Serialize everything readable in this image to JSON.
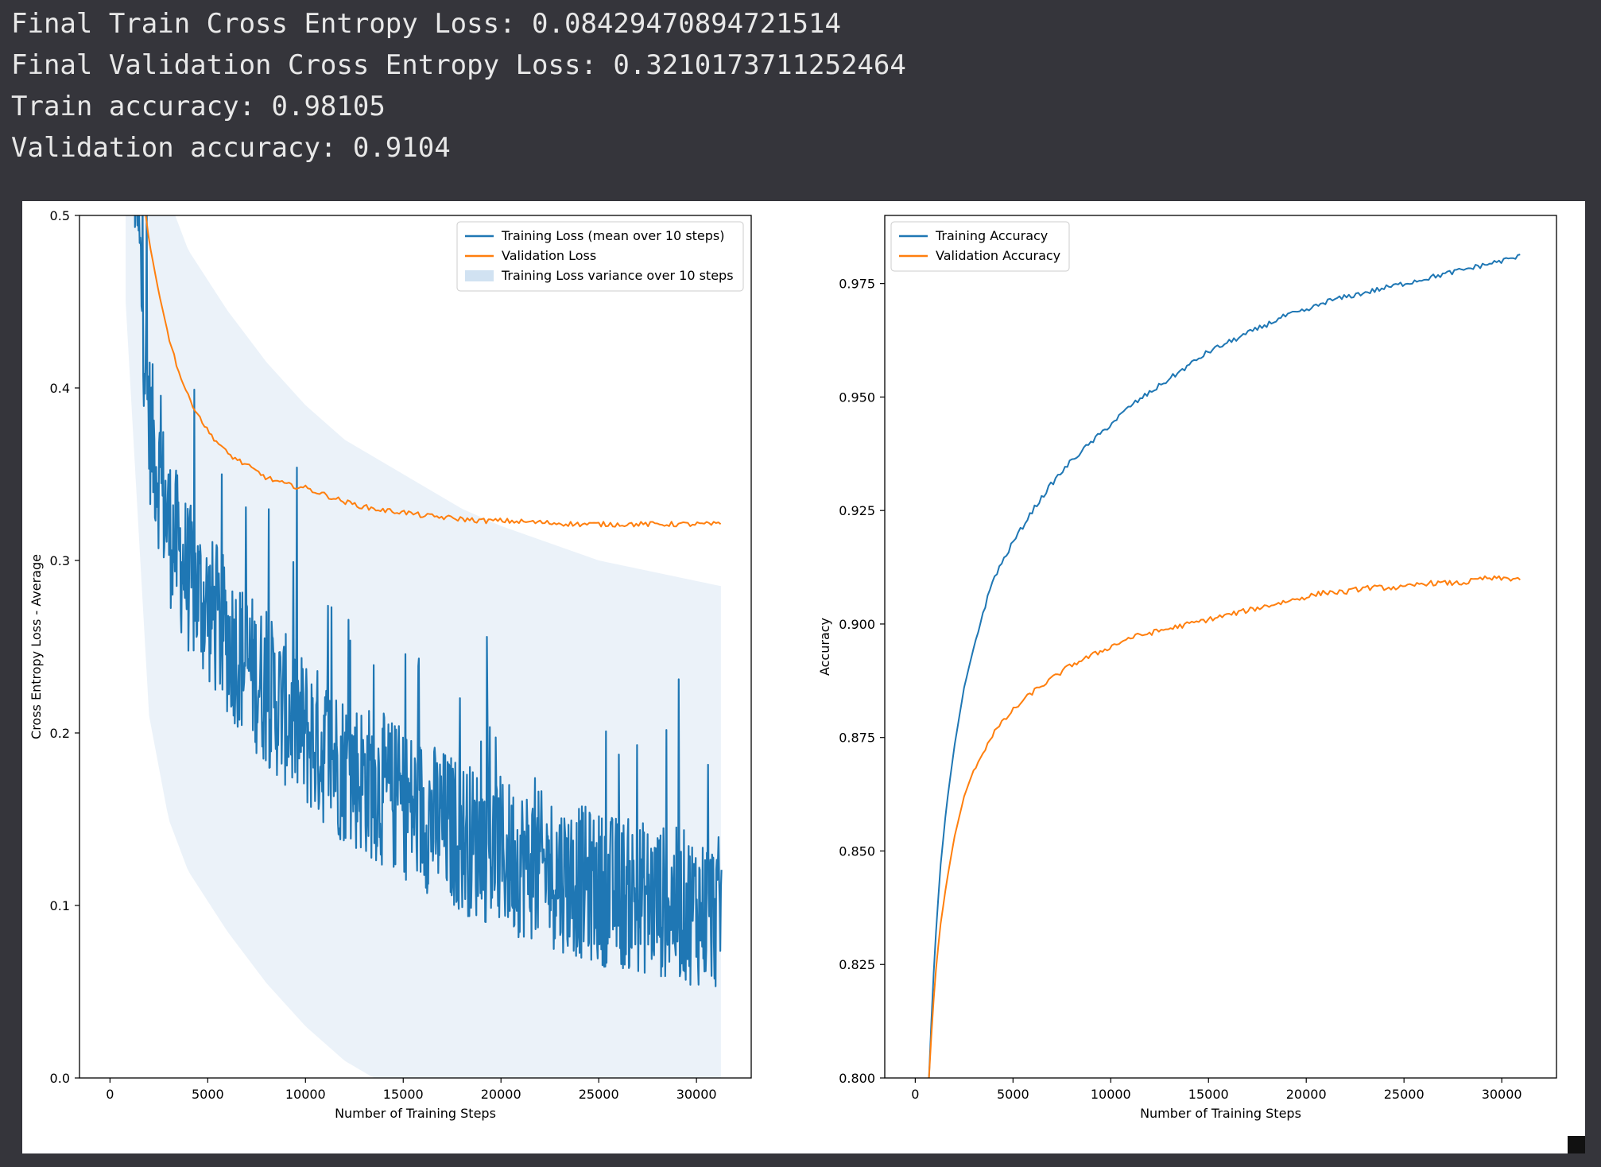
{
  "output": {
    "lines": [
      "Final Train Cross Entropy Loss: 0.08429470894721514",
      "Final Validation Cross Entropy Loss: 0.3210173711252464",
      "Train accuracy: 0.98105",
      "Validation accuracy: 0.9104"
    ]
  },
  "colors": {
    "blue": "#1f77b4",
    "orange": "#ff7f0e",
    "band": "#c6dbef"
  },
  "chart_data": [
    {
      "type": "line",
      "title": "",
      "xlabel": "Number of Training Steps",
      "ylabel": "Cross Entropy Loss - Average",
      "xlim": [
        -1560,
        32800
      ],
      "ylim": [
        0.0,
        0.5
      ],
      "xticks": [
        0,
        5000,
        10000,
        15000,
        20000,
        25000,
        30000
      ],
      "yticks": [
        0.0,
        0.1,
        0.2,
        0.3,
        0.4,
        0.5
      ],
      "ytick_labels": [
        "0.0",
        "0.1",
        "0.2",
        "0.3",
        "0.4",
        "0.5"
      ],
      "legend": {
        "placement": "upper right",
        "entries": [
          "Training Loss (mean over 10 steps)",
          "Validation Loss",
          "Training Loss variance over 10 steps"
        ]
      },
      "series": [
        {
          "name": "Training Loss (mean over 10 steps)",
          "color": "#1f77b4",
          "style": "noisy",
          "x": [
            800,
            2000,
            3000,
            4000,
            6000,
            8000,
            10000,
            12000,
            15000,
            18000,
            20000,
            25000,
            31300
          ],
          "y": [
            0.62,
            0.38,
            0.32,
            0.29,
            0.255,
            0.225,
            0.2,
            0.18,
            0.16,
            0.14,
            0.13,
            0.11,
            0.095
          ],
          "noise": 0.045
        },
        {
          "name": "Validation Loss",
          "color": "#ff7f0e",
          "style": "line",
          "x": [
            1000,
            1500,
            2000,
            2500,
            3000,
            3500,
            4000,
            5000,
            6000,
            7000,
            8000,
            9000,
            10000,
            11000,
            12000,
            13000,
            14000,
            15000,
            16000,
            17000,
            18000,
            19000,
            20000,
            22000,
            24000,
            26000,
            28000,
            30000,
            31250
          ],
          "y": [
            0.58,
            0.53,
            0.485,
            0.455,
            0.43,
            0.41,
            0.395,
            0.375,
            0.362,
            0.355,
            0.348,
            0.344,
            0.342,
            0.338,
            0.334,
            0.331,
            0.329,
            0.328,
            0.326,
            0.325,
            0.324,
            0.323,
            0.323,
            0.322,
            0.321,
            0.321,
            0.321,
            0.321,
            0.321
          ]
        },
        {
          "name": "Training Loss variance over 10 steps",
          "color": "#c6dbef",
          "style": "band"
        }
      ]
    },
    {
      "type": "line",
      "title": "",
      "xlabel": "Number of Training Steps",
      "ylabel": "Accuracy",
      "xlim": [
        -1560,
        32800
      ],
      "ylim": [
        0.8,
        0.99
      ],
      "xticks": [
        0,
        5000,
        10000,
        15000,
        20000,
        25000,
        30000
      ],
      "yticks": [
        0.8,
        0.825,
        0.85,
        0.875,
        0.9,
        0.925,
        0.95,
        0.975
      ],
      "ytick_labels": [
        "0.800",
        "0.825",
        "0.850",
        "0.875",
        "0.900",
        "0.925",
        "0.950",
        "0.975"
      ],
      "legend": {
        "placement": "upper left",
        "entries": [
          "Training Accuracy",
          "Validation Accuracy"
        ]
      },
      "series": [
        {
          "name": "Training Accuracy",
          "color": "#1f77b4",
          "x": [
            700,
            900,
            1100,
            1300,
            1600,
            2000,
            2500,
            3000,
            3500,
            4000,
            5000,
            6000,
            7000,
            8000,
            9000,
            10000,
            11000,
            12000,
            13000,
            14000,
            15000,
            16000,
            17000,
            18000,
            19000,
            20000,
            21000,
            22000,
            23000,
            24000,
            25000,
            26000,
            27000,
            28000,
            29000,
            30000,
            31000
          ],
          "y": [
            0.8,
            0.82,
            0.835,
            0.847,
            0.86,
            0.873,
            0.886,
            0.895,
            0.903,
            0.91,
            0.918,
            0.925,
            0.931,
            0.936,
            0.94,
            0.944,
            0.948,
            0.951,
            0.954,
            0.957,
            0.96,
            0.962,
            0.964,
            0.966,
            0.968,
            0.969,
            0.971,
            0.972,
            0.973,
            0.974,
            0.975,
            0.976,
            0.977,
            0.978,
            0.979,
            0.98,
            0.981
          ]
        },
        {
          "name": "Validation Accuracy",
          "color": "#ff7f0e",
          "x": [
            700,
            900,
            1100,
            1300,
            1600,
            2000,
            2500,
            3000,
            3500,
            4000,
            5000,
            6000,
            7000,
            8000,
            9000,
            10000,
            11000,
            12000,
            13000,
            14000,
            15000,
            16000,
            17000,
            18000,
            19000,
            20000,
            21000,
            22000,
            23000,
            24000,
            25000,
            26000,
            27000,
            28000,
            29000,
            30000,
            31000
          ],
          "y": [
            0.8,
            0.815,
            0.826,
            0.834,
            0.843,
            0.853,
            0.862,
            0.868,
            0.872,
            0.876,
            0.881,
            0.885,
            0.888,
            0.891,
            0.893,
            0.895,
            0.897,
            0.898,
            0.899,
            0.9,
            0.901,
            0.902,
            0.903,
            0.904,
            0.905,
            0.906,
            0.907,
            0.907,
            0.908,
            0.908,
            0.908,
            0.909,
            0.909,
            0.909,
            0.91,
            0.91,
            0.91
          ]
        }
      ]
    }
  ]
}
